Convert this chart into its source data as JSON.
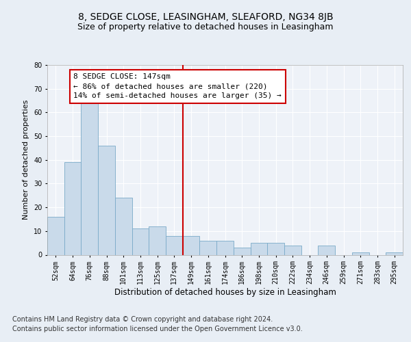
{
  "title": "8, SEDGE CLOSE, LEASINGHAM, SLEAFORD, NG34 8JB",
  "subtitle": "Size of property relative to detached houses in Leasingham",
  "xlabel": "Distribution of detached houses by size in Leasingham",
  "ylabel": "Number of detached properties",
  "categories": [
    "52sqm",
    "64sqm",
    "76sqm",
    "88sqm",
    "101sqm",
    "113sqm",
    "125sqm",
    "137sqm",
    "149sqm",
    "161sqm",
    "174sqm",
    "186sqm",
    "198sqm",
    "210sqm",
    "222sqm",
    "234sqm",
    "246sqm",
    "259sqm",
    "271sqm",
    "283sqm",
    "295sqm"
  ],
  "values": [
    16,
    39,
    65,
    46,
    24,
    11,
    12,
    8,
    8,
    6,
    6,
    3,
    5,
    5,
    4,
    0,
    4,
    0,
    1,
    0,
    1
  ],
  "bar_color": "#c9daea",
  "bar_edge_color": "#7aaac8",
  "highlight_line_index": 8,
  "highlight_line_color": "#cc0000",
  "annotation_text": "8 SEDGE CLOSE: 147sqm\n← 86% of detached houses are smaller (220)\n14% of semi-detached houses are larger (35) →",
  "annotation_box_color": "#cc0000",
  "ylim": [
    0,
    80
  ],
  "yticks": [
    0,
    10,
    20,
    30,
    40,
    50,
    60,
    70,
    80
  ],
  "background_color": "#e8eef5",
  "plot_bg_color": "#eef2f8",
  "footer_line1": "Contains HM Land Registry data © Crown copyright and database right 2024.",
  "footer_line2": "Contains public sector information licensed under the Open Government Licence v3.0.",
  "title_fontsize": 10,
  "subtitle_fontsize": 9,
  "xlabel_fontsize": 8.5,
  "ylabel_fontsize": 8,
  "annotation_fontsize": 8,
  "footer_fontsize": 7,
  "tick_fontsize": 7
}
